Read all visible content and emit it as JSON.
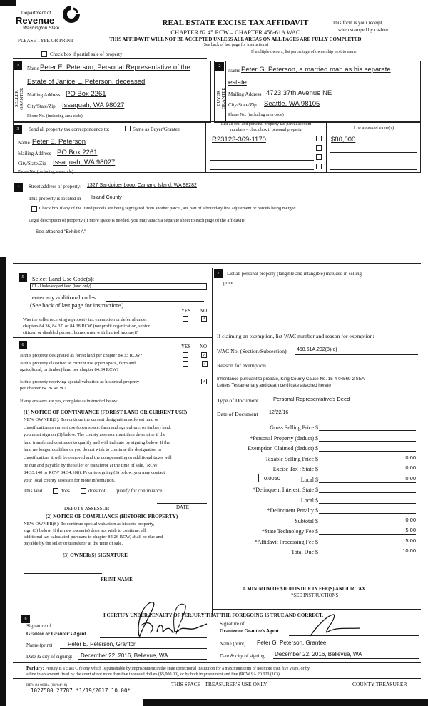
{
  "header": {
    "logo_text": "Department of Revenue Washington State",
    "title": "REAL ESTATE EXCISE TAX AFFIDAVIT",
    "chapter": "CHAPTER 82.45 RCW – CHAPTER 458-61A WAC",
    "warning": "THIS AFFIDAVIT WILL NOT BE ACCEPTED UNLESS ALL AREAS ON ALL PAGES ARE FULLY COMPLETED",
    "instructions": "(See back of last page for instructions)",
    "please_type": "PLEASE TYPE OR PRINT",
    "receipt_1": "This form is your receipt",
    "receipt_2": "when stamped by cashier.",
    "partial_sale": "Check box if partial sale of property",
    "multiple_owners": "If multiple owners, list percentage of ownership next to name."
  },
  "seller": {
    "num": "1",
    "side_label": "SELLER GRANTOR",
    "name_label": "Name",
    "name_1": "Peter E. Peterson, Personal Representative of the",
    "name_2": "Estate of Janice L. Peterson, deceased",
    "mail_label": "Mailing Address",
    "mail": "PO Box 2261",
    "city_label": "City/State/Zip",
    "city": "Issaquah, WA 98027",
    "phone_label": "Phone No. (including area code)"
  },
  "buyer": {
    "num": "2",
    "side_label": "BUYER GRANTEE",
    "name_label": "Name",
    "name_1": "Peter G. Peterson, a married man as his separate",
    "name_2": "estate",
    "mail_label": "Mailing Address",
    "mail": "4723 37th Avenue NE",
    "city_label": "City/State/Zip",
    "city": "Seattle, WA 98105",
    "phone_label": "Phone No. (including area code)"
  },
  "correspondence": {
    "num": "3",
    "label": "Send all property tax correspondence to:",
    "same_label": "Same as Buyer/Grantee",
    "name_label": "Name",
    "name": "Peter E. Peterson",
    "mail_label": "Mailing Address",
    "mail": "PO Box 2261",
    "city_label": "City/State/Zip",
    "city": "Issaquah, WA 98027",
    "phone_label": "Phone No. (including area code)"
  },
  "parcels": {
    "header_1": "List all real and personal property tax parcel account",
    "header_2": "numbers – check box if personal property",
    "values_header": "List assessed value(s)",
    "parcel": "R23123-369-1170",
    "value": "$80,000"
  },
  "property": {
    "num": "4",
    "street_label": "Street address of property:",
    "street": "1327 Sandpiper Loop, Camano Island, WA 98282",
    "located_label": "This property is located in",
    "county": "Island County",
    "segregated": "Check box if any of the listed parcels are being segregated from another parcel, are part of a boundary line adjustment or parcels being merged.",
    "legal_label": "Legal description of property (if more space is needed, you may attach a separate sheet to each page of the affidavit)",
    "legal": "See attached \"Exhibit A\""
  },
  "land_use": {
    "num": "5",
    "label": "Select Land Use Code(s):",
    "code": "01 - Undeveloped land (land only)",
    "additional": "enter any additional codes:",
    "see_back": "(See back of last page for instructions)",
    "yes": "YES",
    "no": "NO",
    "q1_a": "Was the seller receiving a property tax exemption or deferral under",
    "q1_b": "chapters 84.36, 84.37, or 84.38 RCW (nonprofit organization, senior",
    "q1_c": "citizen, or disabled person, homeowner with limited income)?"
  },
  "sec6": {
    "num": "6",
    "yes": "YES",
    "no": "NO",
    "q1": "Is this property designated as forest land per chapter 84.33 RCW?",
    "q2_a": "Is this property classified as current use (open space, farm and",
    "q2_b": "agricultural, or timber) land per chapter 84.34 RCW?",
    "q3_a": "Is this property receiving special valuation as historical property",
    "q3_b": "per chapter 84.26 RCW?",
    "if_yes": "If any answers are yes, complete as instructed below.",
    "n1_title": "(1) NOTICE OF CONTINUANCE (FOREST LAND OR CURRENT USE)",
    "n1_lines": [
      "NEW OWNER(S): To continue the current designation as forest land or",
      "classification as current use (open space, farm and agriculture, or timber) land,",
      "you must sign on (3) below. The county assessor must then determine if the",
      "land transferred continues to qualify and will indicate by signing below. If the",
      "land no longer qualifies or you do not wish to continue the designation or",
      "classification, it will be removed and the compensating or additional taxes will",
      "be due and payable by the seller or transferor at the time of sale. (RCW",
      "84.33.140 or RCW 84.34.108). Prior to signing (3) below, you may contact",
      "your local county assessor for more information."
    ],
    "this_land": "This land",
    "does": "does",
    "does_not": "does not",
    "qualify": "qualify for continuance.",
    "deputy": "DEPUTY ASSESSOR",
    "date": "DATE",
    "n2_title": "(2) NOTICE OF COMPLIANCE (HISTORIC PROPERTY)",
    "n2_lines": [
      "NEW OWNER(S): To continue special valuation as historic property,",
      "sign (3) below. If the new owner(s) does not wish to continue, all",
      "additional tax calculated pursuant to chapter 84.26 RCW, shall be due and",
      "payable by the seller or transferor at the time of sale."
    ],
    "n3_title": "(3) OWNER(S) SIGNATURE",
    "print_name": "PRINT NAME"
  },
  "sec7": {
    "num": "7",
    "label_1": "List all  personal property (tangible and intangible) included in selling",
    "label_2": "price.",
    "exemption_label": "If claiming an exemption, list WAC number and reason for exemption:",
    "wac_label": "WAC No. (Section/Subsection)",
    "wac": "458.61A.202(8)(c)",
    "reason_label": "Reason for exemption",
    "reason_1": "Inheritance pursuant to probate, King County Cause No. 15-4-04569-2 SEA",
    "reason_2": "Letters Testamentary and death certificate attached hereto",
    "doc_type_label": "Type of Document",
    "doc_type": "Personal Representative's Deed",
    "doc_date_label": "Date of Document",
    "doc_date": "12/22/16"
  },
  "fees": {
    "rows": [
      {
        "label": "Gross Selling Price $",
        "value": ""
      },
      {
        "label": "*Personal Property (deduct) $",
        "value": ""
      },
      {
        "label": "Exemption Claimed (deduct) $",
        "value": ""
      },
      {
        "label": "Taxable Selling Price $",
        "value": "0.00"
      },
      {
        "label": "Excise Tax : State $",
        "value": "0.00"
      },
      {
        "label": "Local $",
        "value": "0.00"
      },
      {
        "label": "*Delinquent Interest: State $",
        "value": ""
      },
      {
        "label": "Local $",
        "value": ""
      },
      {
        "label": "*Delinquent Penalty $",
        "value": ""
      },
      {
        "label": "Subtotal $",
        "value": "0.00"
      },
      {
        "label": "*State Technology Fee $",
        "value": "5.00"
      },
      {
        "label": "*Affidavit Processing Fee $",
        "value": "5.00"
      },
      {
        "label": "Total Due $",
        "value": "10.00"
      }
    ],
    "local_rate": "0.0050",
    "minimum": "A MINIMUM OF $10.00 IS DUE IN FEE(S) AND/OR TAX",
    "see_instructions": "*SEE INSTRUCTIONS"
  },
  "sec8": {
    "num": "8",
    "certify": "I CERTIFY UNDER PENALTY OF PERJURY THAT THE FOREGOING IS TRUE AND CORRECT.",
    "sig_of": "Signature of",
    "grantor_agent": "Grantor or Grantor's Agent",
    "grantee_agent": "Grantee or Grantee's Agent",
    "name_print": "Name (print)",
    "grantor_name": "Peter E. Peterson, Grantor",
    "grantee_name": "Peter G. Peterson, Grantee",
    "date_label": "Date & city of signing:",
    "grantor_date": "December 22, 2016, Bellevue, WA",
    "grantee_date": "December 22, 2016, Bellevue, WA"
  },
  "footer": {
    "perjury_label": "Perjury:",
    "perjury_1": "Perjury is a class C felony which is punishable by imprisonment in the state correctional institution for a maximum term of not more than five years, or by",
    "perjury_2": "a fine in an amount fixed by the court of not more than five thousand dollars ($5,000.00), or by both imprisonment and fine (RCW 9A.20.020 (1C)).",
    "rev": "REV 84 0001a (01/04/16)",
    "stamp": "1027580 27787 *1/19/2017 10.00*",
    "treasurer_space": "THIS SPACE - TREASURER'S USE ONLY",
    "county_treasurer": "COUNTY TREASURER"
  }
}
